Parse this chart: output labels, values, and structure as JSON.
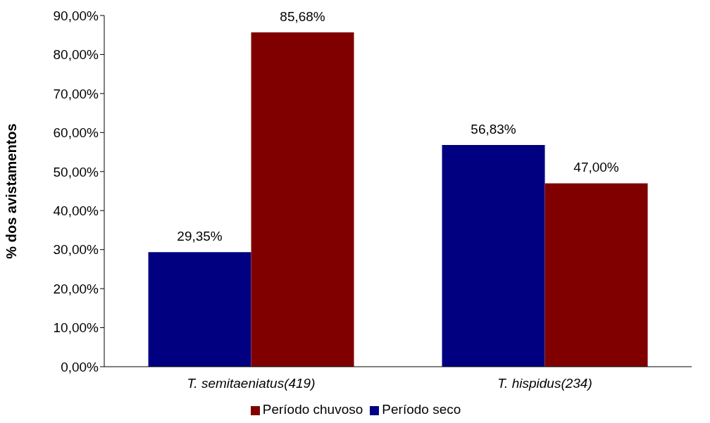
{
  "chart_data": {
    "type": "bar",
    "ylabel": "% dos avistamentos",
    "categories": [
      "T. semitaeniatus(419)",
      "T. hispidus(234)"
    ],
    "series": [
      {
        "name": "Período seco",
        "color": "#000080",
        "values": [
          29.35,
          56.83
        ],
        "value_labels": [
          "29,35%",
          "56,83%"
        ]
      },
      {
        "name": "Período chuvoso",
        "color": "#800000",
        "values": [
          85.68,
          47.0
        ],
        "value_labels": [
          "85,68%",
          "47,00%"
        ]
      }
    ],
    "ylim": [
      0,
      90
    ],
    "yticks": [
      {
        "value": 0,
        "label": "0,00%"
      },
      {
        "value": 10,
        "label": "10,00%"
      },
      {
        "value": 20,
        "label": "20,00%"
      },
      {
        "value": 30,
        "label": "30,00%"
      },
      {
        "value": 40,
        "label": "40,00%"
      },
      {
        "value": 50,
        "label": "50,00%"
      },
      {
        "value": 60,
        "label": "60,00%"
      },
      {
        "value": 70,
        "label": "70,00%"
      },
      {
        "value": 80,
        "label": "80,00%"
      },
      {
        "value": 90,
        "label": "90,00%"
      }
    ],
    "grid": false,
    "legend": "bottom"
  }
}
